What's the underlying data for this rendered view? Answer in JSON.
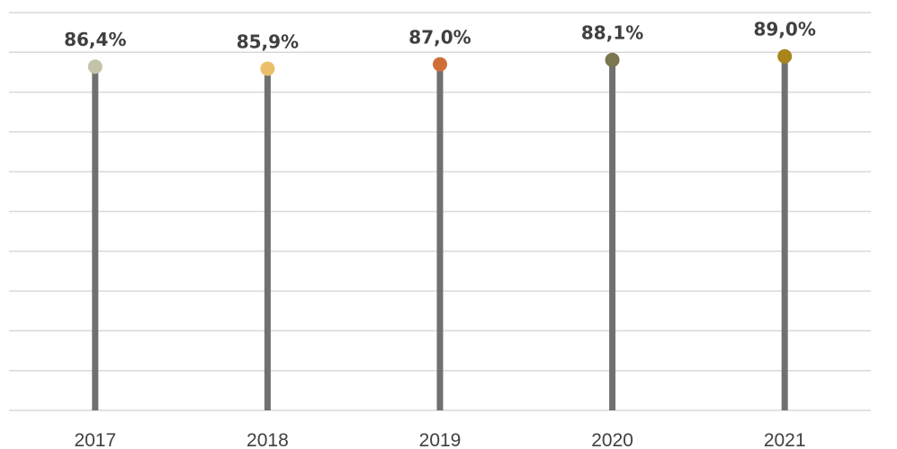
{
  "chart_data": {
    "type": "lollipop",
    "categories": [
      "2017",
      "2018",
      "2019",
      "2020",
      "2021"
    ],
    "values": [
      86.4,
      85.9,
      87.0,
      88.1,
      89.0
    ],
    "labels": [
      "86,4%",
      "85,9%",
      "87,0%",
      "88,1%",
      "89,0%"
    ],
    "colors": [
      "#c4c2a8",
      "#ebbf6a",
      "#cf6f37",
      "#7a7652",
      "#a9841a"
    ],
    "stem_color": "#707070",
    "ylim": [
      0,
      100
    ],
    "grid": true,
    "legend": "none",
    "title": "",
    "xlabel": "",
    "ylabel": ""
  }
}
